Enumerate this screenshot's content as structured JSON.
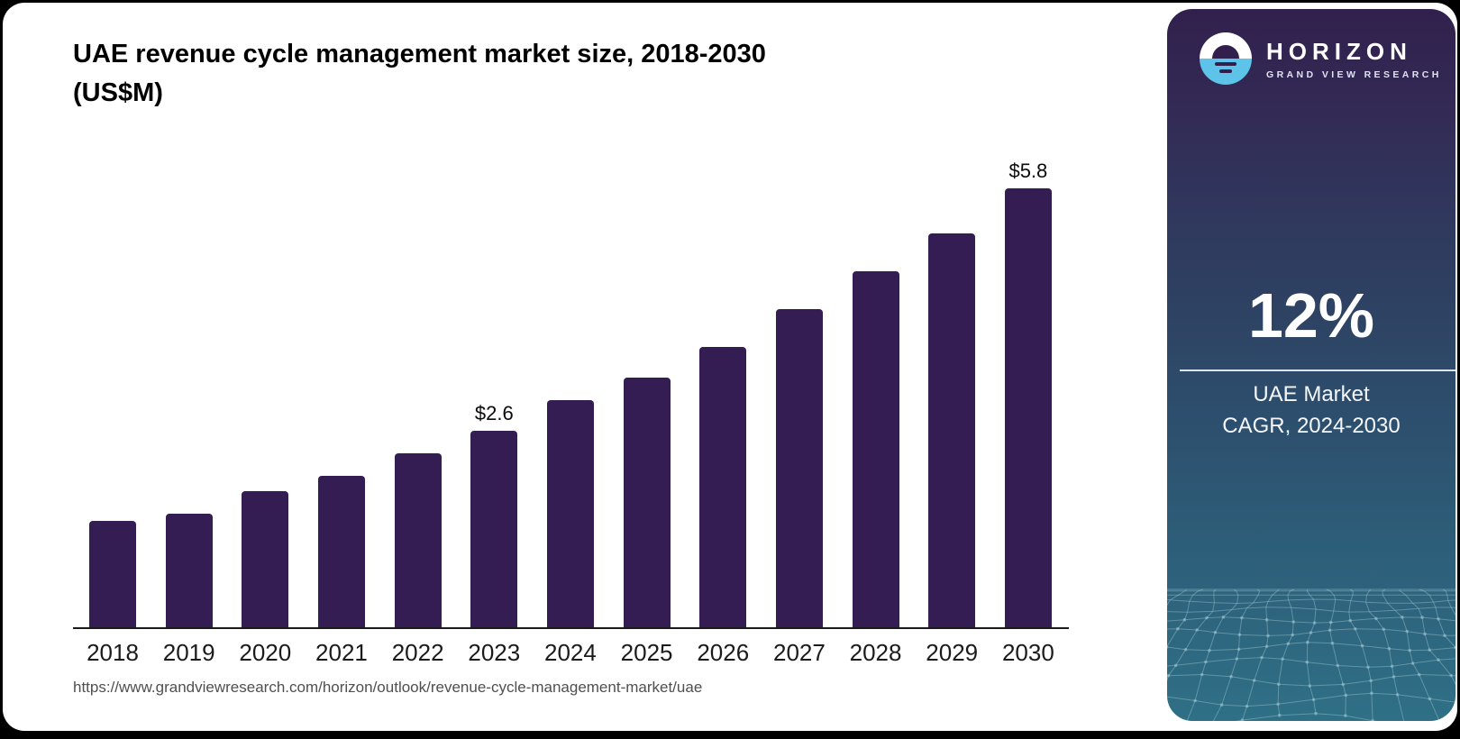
{
  "header": {
    "title_line1": "UAE revenue cycle management market size, 2018-2030",
    "title_line2": "(US$M)"
  },
  "footer": {
    "source_url": "https://www.grandviewresearch.com/horizon/outlook/revenue-cycle-management-market/uae"
  },
  "chart_data": {
    "type": "bar",
    "title": "UAE revenue cycle management market size, 2018-2030 (US$M)",
    "categories": [
      "2018",
      "2019",
      "2020",
      "2021",
      "2022",
      "2023",
      "2024",
      "2025",
      "2026",
      "2027",
      "2028",
      "2029",
      "2030"
    ],
    "values": [
      1.4,
      1.5,
      1.8,
      2.0,
      2.3,
      2.6,
      3.0,
      3.3,
      3.7,
      4.2,
      4.7,
      5.2,
      5.8
    ],
    "data_labels": [
      {
        "category": "2023",
        "label": "$2.6"
      },
      {
        "category": "2030",
        "label": "$5.8"
      }
    ],
    "ylabel": "US$M",
    "ylim": [
      0,
      6.2
    ],
    "grid": false,
    "legend": "none",
    "bar_color": "#331d52",
    "axis_color": "#1a1a1a"
  },
  "panel": {
    "brand": {
      "name": "HORIZON",
      "tagline": "GRAND VIEW RESEARCH"
    },
    "stat_value": "12%",
    "stat_label_line1": "UAE Market",
    "stat_label_line2": "CAGR, 2024-2030",
    "colors": {
      "gradient_top": "#31204d",
      "gradient_bottom": "#2f7086",
      "logo_blue": "#5ec3e8",
      "mesh_line": "#a7cdd9"
    }
  }
}
